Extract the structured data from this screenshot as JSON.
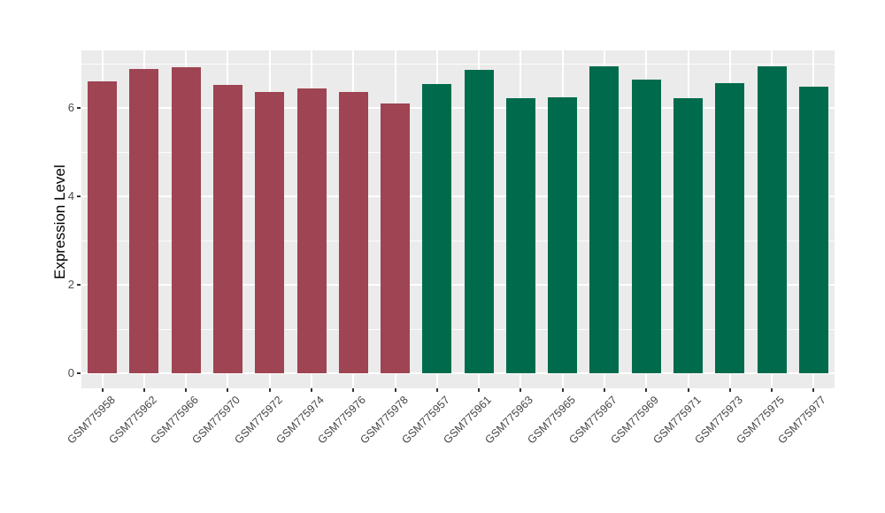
{
  "chart_data": {
    "type": "bar",
    "title": "",
    "xlabel": "",
    "ylabel": "Expression Level",
    "ylim": [
      -0.35,
      7.29
    ],
    "yticks": [
      0,
      2,
      4,
      6
    ],
    "yticks_minor": [
      1,
      3,
      5,
      7
    ],
    "grid": "on",
    "legend_position": "none",
    "panel_bg_color": "#EBEBEB",
    "grid_color": "#FFFFFF",
    "axis_text_color": "#4D4D4D",
    "group_colors": {
      "groupA": "#9E4452",
      "groupB": "#006B4C"
    },
    "categories": [
      "GSM775958",
      "GSM775962",
      "GSM775966",
      "GSM775970",
      "GSM775972",
      "GSM775974",
      "GSM775976",
      "GSM775978",
      "GSM775957",
      "GSM775961",
      "GSM775963",
      "GSM775965",
      "GSM775967",
      "GSM775969",
      "GSM775971",
      "GSM775973",
      "GSM775975",
      "GSM775977"
    ],
    "bars": [
      {
        "label": "GSM775958",
        "value": 6.6,
        "group": "groupA"
      },
      {
        "label": "GSM775962",
        "value": 6.88,
        "group": "groupA"
      },
      {
        "label": "GSM775966",
        "value": 6.92,
        "group": "groupA"
      },
      {
        "label": "GSM775970",
        "value": 6.52,
        "group": "groupA"
      },
      {
        "label": "GSM775972",
        "value": 6.36,
        "group": "groupA"
      },
      {
        "label": "GSM775974",
        "value": 6.44,
        "group": "groupA"
      },
      {
        "label": "GSM775976",
        "value": 6.36,
        "group": "groupA"
      },
      {
        "label": "GSM775978",
        "value": 6.1,
        "group": "groupA"
      },
      {
        "label": "GSM775957",
        "value": 6.54,
        "group": "groupB"
      },
      {
        "label": "GSM775961",
        "value": 6.86,
        "group": "groupB"
      },
      {
        "label": "GSM775963",
        "value": 6.22,
        "group": "groupB"
      },
      {
        "label": "GSM775965",
        "value": 6.24,
        "group": "groupB"
      },
      {
        "label": "GSM775967",
        "value": 6.94,
        "group": "groupB"
      },
      {
        "label": "GSM775969",
        "value": 6.64,
        "group": "groupB"
      },
      {
        "label": "GSM775971",
        "value": 6.22,
        "group": "groupB"
      },
      {
        "label": "GSM775973",
        "value": 6.56,
        "group": "groupB"
      },
      {
        "label": "GSM775975",
        "value": 6.94,
        "group": "groupB"
      },
      {
        "label": "GSM775977",
        "value": 6.48,
        "group": "groupB"
      }
    ]
  }
}
